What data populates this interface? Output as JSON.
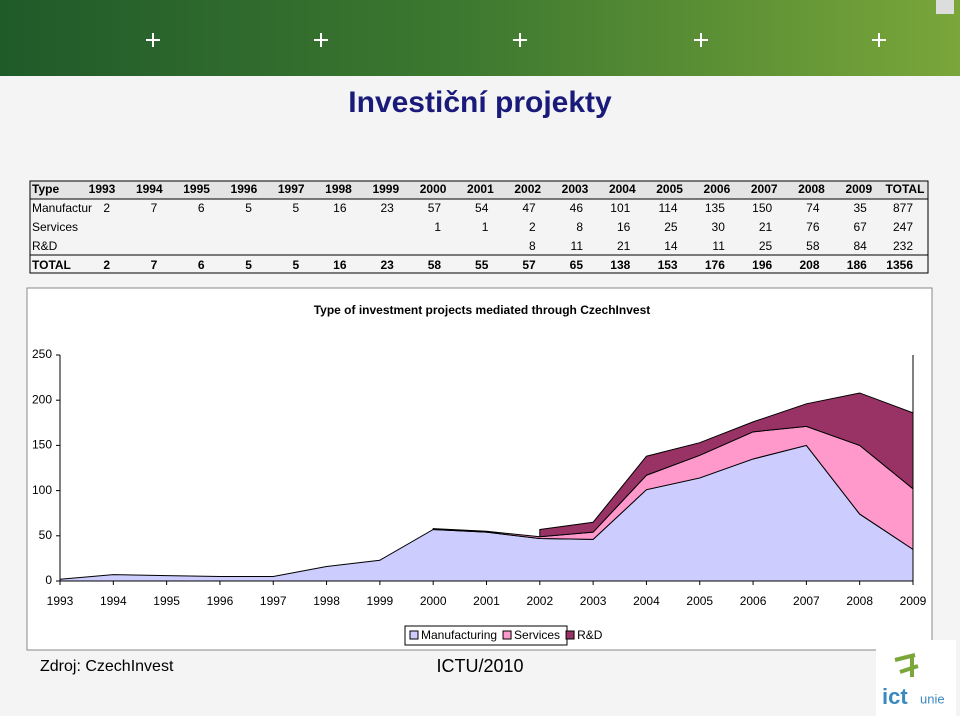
{
  "title": "Investiční projekty",
  "table": {
    "header": [
      "Type",
      "1993",
      "1994",
      "1995",
      "1996",
      "1997",
      "1998",
      "1999",
      "2000",
      "2001",
      "2002",
      "2003",
      "2004",
      "2005",
      "2006",
      "2007",
      "2008",
      "2009",
      "TOTAL"
    ],
    "rows": [
      [
        "Manufactur",
        2,
        7,
        6,
        5,
        5,
        16,
        23,
        57,
        54,
        47,
        46,
        101,
        114,
        135,
        150,
        74,
        35,
        877
      ],
      [
        "Services",
        null,
        null,
        null,
        null,
        null,
        null,
        null,
        1,
        1,
        2,
        8,
        16,
        25,
        30,
        21,
        76,
        67,
        247
      ],
      [
        "R&D",
        null,
        null,
        null,
        null,
        null,
        null,
        null,
        null,
        null,
        8,
        11,
        21,
        14,
        11,
        25,
        58,
        84,
        232
      ],
      [
        "TOTAL",
        2,
        7,
        6,
        5,
        5,
        16,
        23,
        58,
        55,
        57,
        65,
        138,
        153,
        176,
        196,
        208,
        186,
        1356
      ]
    ]
  },
  "chart_data": {
    "type": "area",
    "stacked": true,
    "title": "Type of investment projects mediated through CzechInvest",
    "categories": [
      "1993",
      "1994",
      "1995",
      "1996",
      "1997",
      "1998",
      "1999",
      "2000",
      "2001",
      "2002",
      "2003",
      "2004",
      "2005",
      "2006",
      "2007",
      "2008",
      "2009"
    ],
    "series": [
      {
        "name": "Manufacturing",
        "color": "#ccccff",
        "values": [
          2,
          7,
          6,
          5,
          5,
          16,
          23,
          57,
          54,
          47,
          46,
          101,
          114,
          135,
          150,
          74,
          35
        ]
      },
      {
        "name": "Services",
        "color": "#ff99cc",
        "values": [
          null,
          null,
          null,
          null,
          null,
          null,
          null,
          1,
          1,
          2,
          8,
          16,
          25,
          30,
          21,
          76,
          67
        ]
      },
      {
        "name": "R&D",
        "color": "#993366",
        "values": [
          null,
          null,
          null,
          null,
          null,
          null,
          null,
          null,
          null,
          8,
          11,
          21,
          14,
          11,
          25,
          58,
          84
        ]
      }
    ],
    "ylim": [
      0,
      250
    ],
    "yticks": [
      0,
      50,
      100,
      150,
      200,
      250
    ]
  },
  "source": "Zdroj: CzechInvest",
  "footer": "ICTU/2010",
  "logo": {
    "text1": "ict",
    "text2": "unie"
  }
}
